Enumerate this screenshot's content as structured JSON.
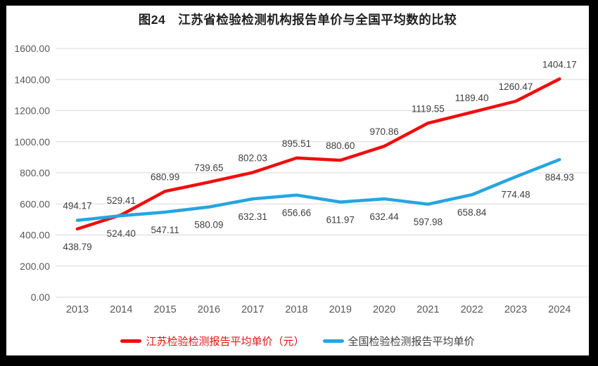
{
  "title": "图24　江苏省检验检测机构报告单价与全国平均数的比较",
  "colors": {
    "frame_background": "#000000",
    "panel_background": "#FFFFFF",
    "gridline": "#D9D9D9",
    "axis_text": "#595959",
    "data_label_text": "#3F3F3F",
    "title_text": "#1F1F1F"
  },
  "chart_data": {
    "type": "line",
    "categories": [
      "2013",
      "2014",
      "2015",
      "2016",
      "2017",
      "2018",
      "2019",
      "2020",
      "2021",
      "2022",
      "2023",
      "2024"
    ],
    "series": [
      {
        "name": "江苏检验检测报告平均单价（元）",
        "color": "#F20D0D",
        "legend_text_color": "#E01414",
        "values": [
          438.79,
          529.41,
          680.99,
          739.65,
          802.03,
          895.51,
          880.6,
          970.86,
          1119.55,
          1189.4,
          1260.47,
          1404.17
        ],
        "label_side": "above",
        "label_side_overrides": {
          "0": "below"
        }
      },
      {
        "name": "全国检验检测报告平均单价",
        "color": "#27A5DE",
        "legend_text_color": "#404040",
        "values": [
          494.17,
          524.4,
          547.11,
          580.09,
          632.31,
          656.66,
          611.97,
          632.44,
          597.98,
          658.84,
          774.48,
          884.93
        ],
        "label_side": "below",
        "label_side_overrides": {
          "0": "above"
        }
      }
    ],
    "ylim": [
      0,
      1600
    ],
    "ytick_step": 200,
    "ytick_format_decimals": 2,
    "data_label_decimals": 2,
    "grid": true,
    "legend_position": "bottom"
  }
}
